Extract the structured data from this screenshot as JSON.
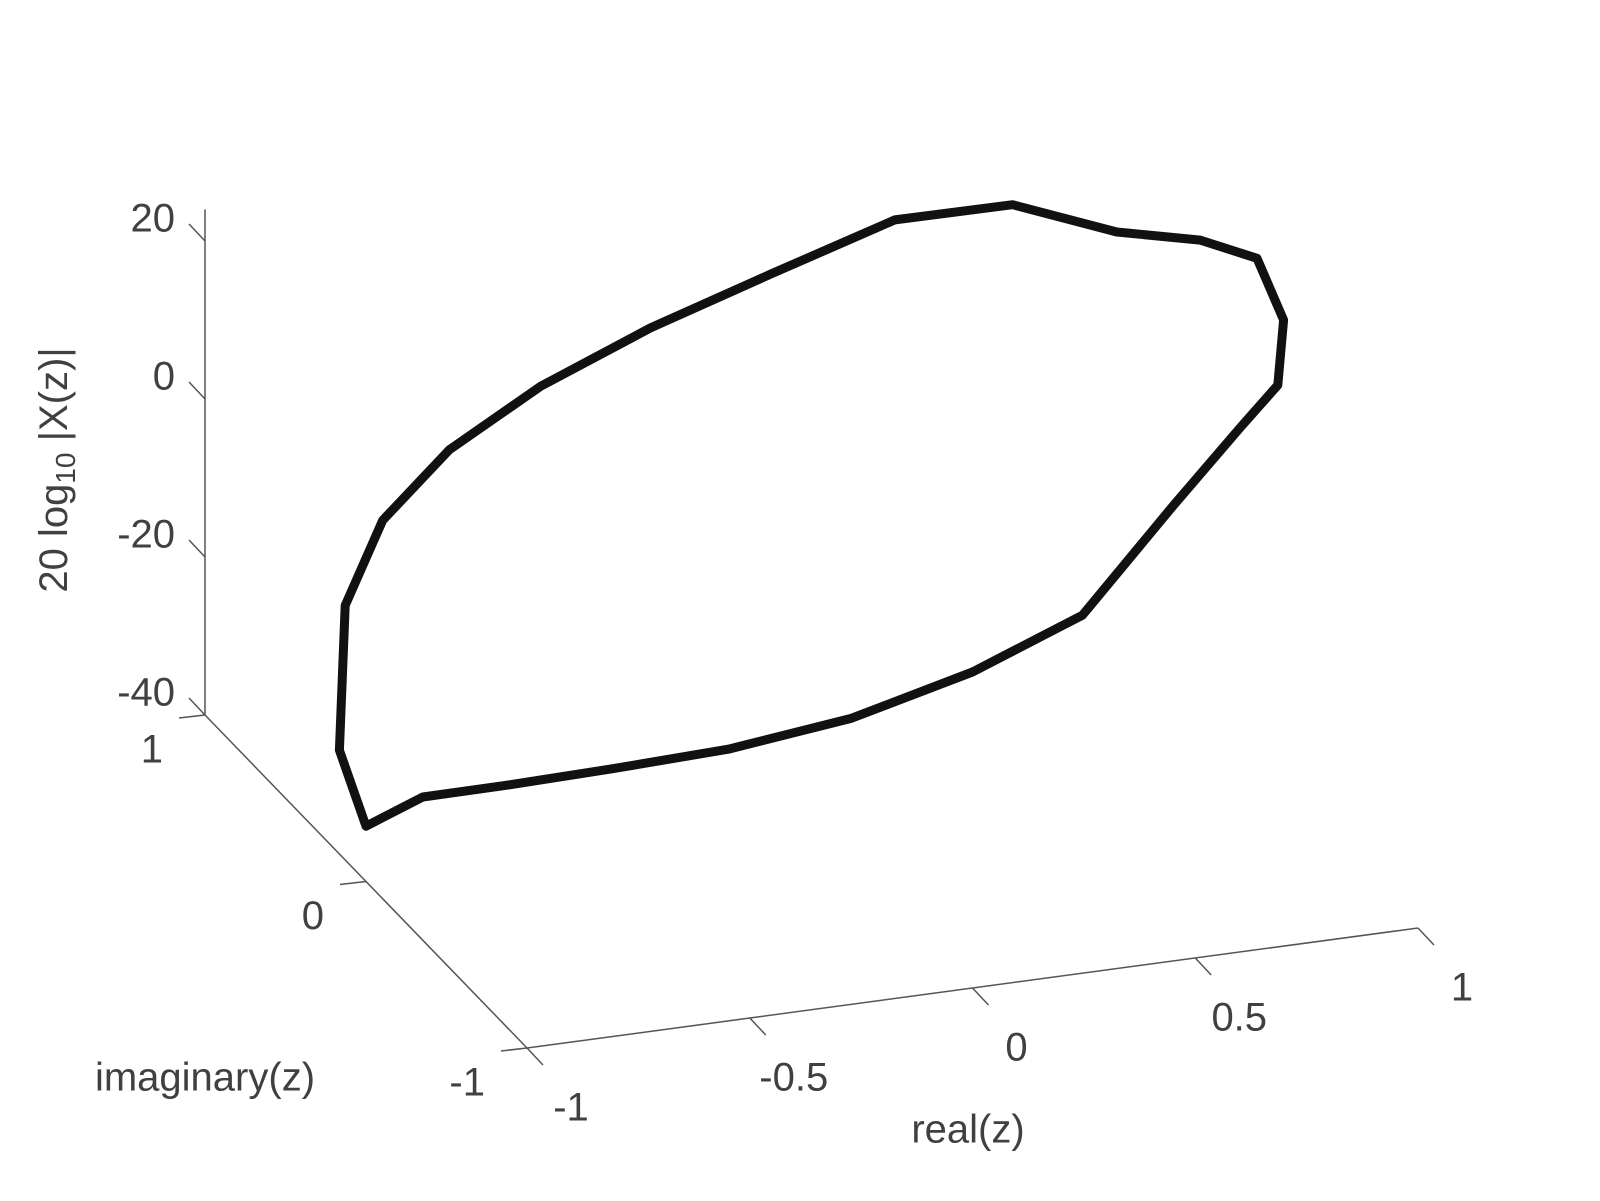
{
  "chart_data": {
    "type": "line3d",
    "xlabel": "real(z)",
    "ylabel": "imaginary(z)",
    "zlabel": [
      "20 log",
      "10",
      " |X(z)|"
    ],
    "color": "#111111",
    "xlim": [
      -1,
      1
    ],
    "ylim": [
      -1,
      1
    ],
    "zlim": [
      -40,
      24
    ],
    "xticks": [
      -1,
      -0.5,
      0,
      0.5,
      1
    ],
    "yticks": [
      -1,
      0,
      1
    ],
    "zticks": [
      -40,
      -20,
      0,
      20
    ],
    "x": [
      1,
      0.966,
      0.866,
      0.707,
      0.5,
      0.259,
      0,
      -0.259,
      -0.5,
      -0.707,
      -0.866,
      -0.966,
      -1,
      -0.966,
      -0.866,
      -0.707,
      -0.5,
      -0.259,
      0,
      0.259,
      0.5,
      0.707,
      0.866,
      0.966,
      1
    ],
    "y": [
      0,
      0.259,
      0.5,
      0.707,
      0.866,
      0.966,
      1,
      0.966,
      0.866,
      0.707,
      0.5,
      0.259,
      0,
      -0.259,
      -0.5,
      -0.707,
      -0.866,
      -0.966,
      -1,
      -0.966,
      -0.866,
      -0.707,
      -0.5,
      -0.259,
      0
    ],
    "z": [
      23.7,
      20.8,
      17.5,
      17.8,
      14.1,
      7.0,
      1.4,
      -3.3,
      -7.4,
      -11.4,
      -16.6,
      -29.1,
      -33,
      -24.1,
      -18.3,
      -13.1,
      -8.8,
      -4.6,
      0,
      4.5,
      14.5,
      19.4,
      19.2,
      21.6,
      23.7
    ]
  }
}
